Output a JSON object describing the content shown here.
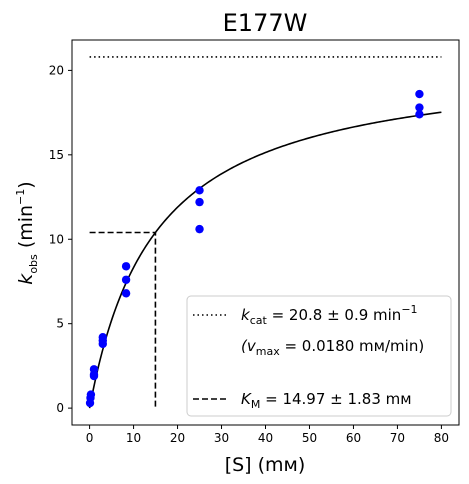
{
  "chart_data": {
    "type": "scatter",
    "title": "E177W",
    "xlabel": "[S] (mм)",
    "ylabel_main": "k",
    "ylabel_sub": "obs",
    "ylabel_unit_pre": " (min",
    "ylabel_unit_sup": "−1",
    "ylabel_unit_post": ")",
    "xlim": [
      -4,
      84
    ],
    "ylim": [
      -1,
      21.8
    ],
    "xticks": [
      0,
      10,
      20,
      30,
      40,
      50,
      60,
      70,
      80
    ],
    "yticks": [
      0,
      5,
      10,
      15,
      20
    ],
    "grid": false,
    "legend_position": "lower right",
    "colors": {
      "points": "#0000ff",
      "lines": "#000000"
    },
    "series": [
      {
        "type": "scatter",
        "points": [
          [
            0.1,
            0.3
          ],
          [
            0.2,
            0.6
          ],
          [
            0.3,
            0.8
          ],
          [
            1.0,
            1.9
          ],
          [
            1.0,
            2.0
          ],
          [
            1.0,
            2.3
          ],
          [
            3.0,
            3.8
          ],
          [
            3.0,
            4.0
          ],
          [
            3.0,
            4.2
          ],
          [
            8.3,
            6.8
          ],
          [
            8.3,
            7.6
          ],
          [
            8.3,
            8.4
          ],
          [
            25,
            10.6
          ],
          [
            25,
            12.2
          ],
          [
            25,
            12.9
          ],
          [
            75,
            17.4
          ],
          [
            75,
            17.8
          ],
          [
            75,
            18.6
          ]
        ]
      },
      {
        "type": "line",
        "style": "solid",
        "model": "michaelis-menten",
        "vmax": 20.8,
        "km": 14.97,
        "x_range": [
          0,
          80
        ]
      },
      {
        "type": "line",
        "name": "kcat",
        "style": "dotted",
        "points": [
          [
            0,
            20.8
          ],
          [
            80,
            20.8
          ]
        ]
      },
      {
        "type": "line",
        "name": "KM",
        "style": "dashed",
        "points": [
          [
            0,
            10.4
          ],
          [
            14.97,
            10.4
          ],
          [
            14.97,
            0
          ]
        ]
      }
    ],
    "legend": {
      "kcat_main": "k",
      "kcat_sub": "cat",
      "kcat_value": " = 20.8 ± 0.9 min",
      "kcat_sup": "−1",
      "vmax_pre": "(v",
      "vmax_sub": "max",
      "vmax_value": " = 0.0180 mм/min)",
      "km_main": "K",
      "km_sub": "M",
      "km_value": " = 14.97 ± 1.83 mм"
    }
  }
}
